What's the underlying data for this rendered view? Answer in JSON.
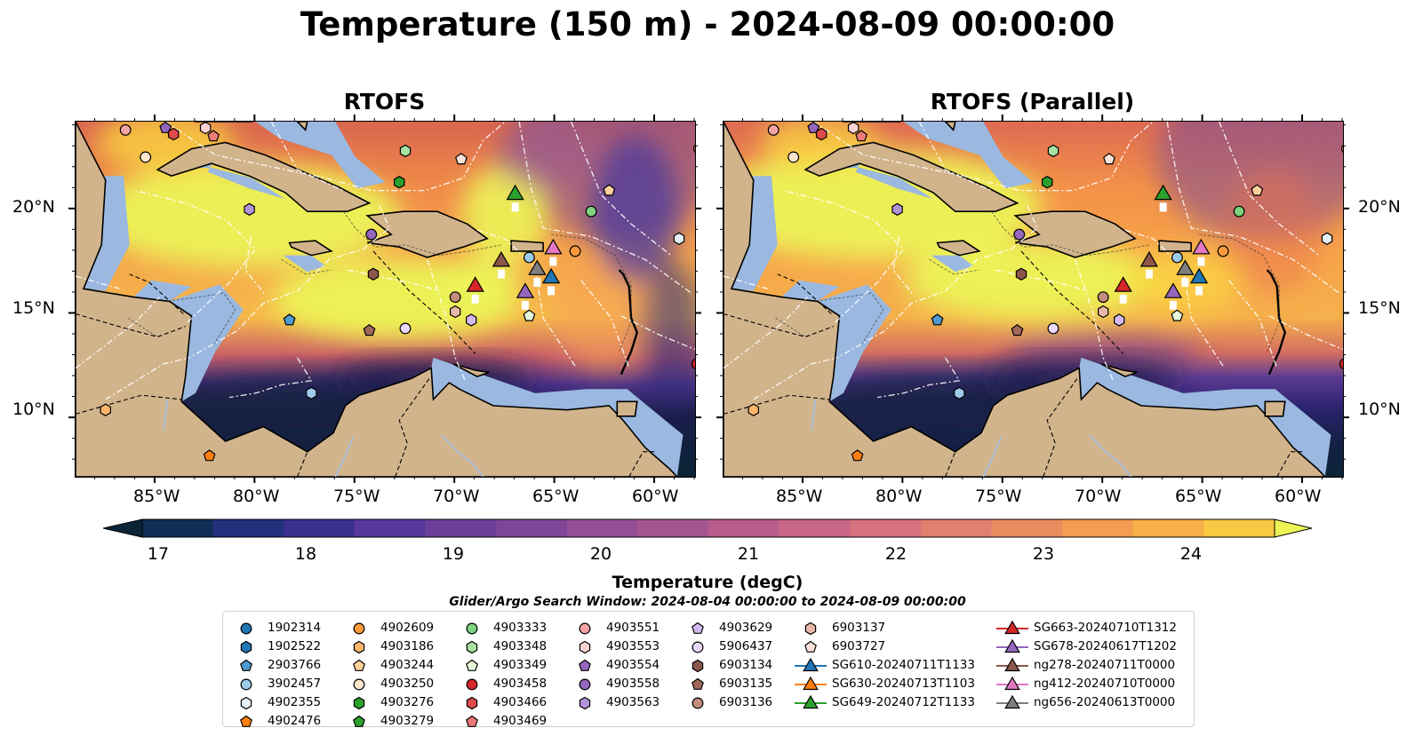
{
  "figure": {
    "title": "Temperature (150 m) - 2024-08-09 00:00:00",
    "panels": [
      {
        "title": "RTOFS"
      },
      {
        "title": "RTOFS (Parallel)"
      }
    ],
    "axes": {
      "lon_ticks": [
        "85°W",
        "80°W",
        "75°W",
        "70°W",
        "65°W",
        "60°W"
      ],
      "lat_ticks": [
        "20°N",
        "15°N",
        "10°N"
      ]
    },
    "colorbar": {
      "label": "Temperature (degC)",
      "ticks": [
        "17",
        "18",
        "19",
        "20",
        "21",
        "22",
        "23",
        "24"
      ],
      "min": 16.5,
      "max": 24.5,
      "extend": "both"
    },
    "search_window": "Glider/Argo Search Window: 2024-08-04 00:00:00 to 2024-08-09 00:00:00",
    "colors": {
      "land": "#d2b48c",
      "shelf": "#9ab8e0",
      "deep": "#0a2435",
      "warm": "#ecf457",
      "eez_line": "#ffffff",
      "border_line": "#000000"
    }
  },
  "legend": {
    "columns": [
      [
        {
          "label": "1902314",
          "shape": "circle",
          "color": "#1f77b4"
        },
        {
          "label": "1902522",
          "shape": "hexagon",
          "color": "#1f77b4"
        },
        {
          "label": "2903766",
          "shape": "pentagon",
          "color": "#4f9ad0"
        },
        {
          "label": "3902457",
          "shape": "circle",
          "color": "#9ecae9"
        },
        {
          "label": "4902355",
          "shape": "hexagon",
          "color": "#e4f1fb"
        },
        {
          "label": "4902476",
          "shape": "pentagon",
          "color": "#ff7f0e"
        }
      ],
      [
        {
          "label": "4902609",
          "shape": "circle",
          "color": "#ff9a3c"
        },
        {
          "label": "4903186",
          "shape": "hexagon",
          "color": "#ffb46b"
        },
        {
          "label": "4903244",
          "shape": "pentagon",
          "color": "#ffd09c"
        },
        {
          "label": "4903250",
          "shape": "circle",
          "color": "#ffe7cc"
        },
        {
          "label": "4903276",
          "shape": "hexagon",
          "color": "#2ca02c"
        },
        {
          "label": "4903279",
          "shape": "pentagon",
          "color": "#2ca02c"
        }
      ],
      [
        {
          "label": "4903333",
          "shape": "circle",
          "color": "#7ed47e"
        },
        {
          "label": "4903348",
          "shape": "hexagon",
          "color": "#a6e3a0"
        },
        {
          "label": "4903349",
          "shape": "pentagon",
          "color": "#e6fadc"
        },
        {
          "label": "4903458",
          "shape": "circle",
          "color": "#d62728"
        },
        {
          "label": "4903466",
          "shape": "hexagon",
          "color": "#e04a4a"
        },
        {
          "label": "4903469",
          "shape": "pentagon",
          "color": "#ec7a76"
        }
      ],
      [
        {
          "label": "4903551",
          "shape": "circle",
          "color": "#f4a3a3"
        },
        {
          "label": "4903553",
          "shape": "hexagon",
          "color": "#fbd4d2"
        },
        {
          "label": "4903554",
          "shape": "pentagon",
          "color": "#9467bd"
        },
        {
          "label": "4903558",
          "shape": "circle",
          "color": "#9467bd"
        },
        {
          "label": "4903563",
          "shape": "hexagon",
          "color": "#b294d8"
        }
      ],
      [
        {
          "label": "4903629",
          "shape": "pentagon",
          "color": "#d2b9ee"
        },
        {
          "label": "5906437",
          "shape": "circle",
          "color": "#ead9fa"
        },
        {
          "label": "6903134",
          "shape": "hexagon",
          "color": "#8c564b"
        },
        {
          "label": "6903135",
          "shape": "pentagon",
          "color": "#a0685a"
        },
        {
          "label": "6903136",
          "shape": "circle",
          "color": "#c48c7c"
        }
      ],
      [
        {
          "label": "6903137",
          "shape": "hexagon",
          "color": "#e8b8a8"
        },
        {
          "label": "6903727",
          "shape": "pentagon",
          "color": "#fbe2d8"
        },
        {
          "label": "SG610-20240711T1133",
          "shape": "triangle",
          "color": "#1f77b4"
        },
        {
          "label": "SG630-20240713T1103",
          "shape": "triangle",
          "color": "#ff7f0e"
        },
        {
          "label": "SG649-20240712T1133",
          "shape": "triangle",
          "color": "#2ca02c"
        }
      ],
      [
        {
          "label": "SG663-20240710T1312",
          "shape": "triangle",
          "color": "#d62728"
        },
        {
          "label": "SG678-20240617T1202",
          "shape": "triangle",
          "color": "#9467bd"
        },
        {
          "label": "ng278-20240711T0000",
          "shape": "triangle",
          "color": "#8c564b"
        },
        {
          "label": "ng412-20240710T0000",
          "shape": "triangle",
          "color": "#e377c2"
        },
        {
          "label": "ng656-20240613T0000",
          "shape": "triangle",
          "color": "#7f7f7f"
        }
      ]
    ]
  },
  "markers": [
    {
      "lon": -86.5,
      "lat": 23.8,
      "shape": "circle",
      "color": "#f4a3a3"
    },
    {
      "lon": -84.5,
      "lat": 23.9,
      "shape": "pentagon",
      "color": "#9467bd"
    },
    {
      "lon": -84.1,
      "lat": 23.6,
      "shape": "hexagon",
      "color": "#e04a4a"
    },
    {
      "lon": -82.5,
      "lat": 23.9,
      "shape": "hexagon",
      "color": "#fbd4d2"
    },
    {
      "lon": -82.1,
      "lat": 23.5,
      "shape": "pentagon",
      "color": "#ec7a76"
    },
    {
      "lon": -85.5,
      "lat": 22.5,
      "shape": "circle",
      "color": "#ffe7cc"
    },
    {
      "lon": -72.5,
      "lat": 22.8,
      "shape": "hexagon",
      "color": "#a6e3a0"
    },
    {
      "lon": -72.8,
      "lat": 21.3,
      "shape": "hexagon",
      "color": "#2ca02c"
    },
    {
      "lon": -69.7,
      "lat": 22.4,
      "shape": "pentagon",
      "color": "#fbe2d8"
    },
    {
      "lon": -62.3,
      "lat": 20.9,
      "shape": "pentagon",
      "color": "#ffd09c"
    },
    {
      "lon": -80.3,
      "lat": 20.0,
      "shape": "hexagon",
      "color": "#b294d8"
    },
    {
      "lon": -63.2,
      "lat": 19.9,
      "shape": "circle",
      "color": "#7ed47e"
    },
    {
      "lon": -74.2,
      "lat": 18.8,
      "shape": "circle",
      "color": "#9467bd"
    },
    {
      "lon": -58.8,
      "lat": 18.6,
      "shape": "hexagon",
      "color": "#e4f1fb"
    },
    {
      "lon": -66.3,
      "lat": 17.7,
      "shape": "circle",
      "color": "#9ecae9"
    },
    {
      "lon": -64.0,
      "lat": 18.0,
      "shape": "circle",
      "color": "#ff9a3c"
    },
    {
      "lon": -74.1,
      "lat": 16.9,
      "shape": "hexagon",
      "color": "#8c564b"
    },
    {
      "lon": -70.0,
      "lat": 15.8,
      "shape": "circle",
      "color": "#c48c7c"
    },
    {
      "lon": -70.0,
      "lat": 15.1,
      "shape": "hexagon",
      "color": "#e8b8a8"
    },
    {
      "lon": -69.2,
      "lat": 14.7,
      "shape": "hexagon",
      "color": "#d2b9ee"
    },
    {
      "lon": -66.3,
      "lat": 14.9,
      "shape": "pentagon",
      "color": "#e6fadc"
    },
    {
      "lon": -78.3,
      "lat": 14.7,
      "shape": "pentagon",
      "color": "#4f9ad0"
    },
    {
      "lon": -74.3,
      "lat": 14.2,
      "shape": "pentagon",
      "color": "#a0685a"
    },
    {
      "lon": -72.5,
      "lat": 14.3,
      "shape": "circle",
      "color": "#ead9fa"
    },
    {
      "lon": -77.2,
      "lat": 11.2,
      "shape": "hexagon",
      "color": "#9ecae9"
    },
    {
      "lon": -87.5,
      "lat": 10.4,
      "shape": "hexagon",
      "color": "#ffb46b"
    },
    {
      "lon": -82.3,
      "lat": 8.2,
      "shape": "pentagon",
      "color": "#ff7f0e"
    },
    {
      "lon": -57.9,
      "lat": 12.6,
      "shape": "circle",
      "color": "#d62728"
    },
    {
      "lon": -57.8,
      "lat": 22.9,
      "shape": "circle",
      "color": "#ff9a3c"
    }
  ],
  "gliders": [
    {
      "lon": -67.0,
      "lat": 20.7,
      "color": "#2ca02c"
    },
    {
      "lon": -67.7,
      "lat": 17.5,
      "color": "#8c564b"
    },
    {
      "lon": -65.1,
      "lat": 18.1,
      "color": "#e377c2"
    },
    {
      "lon": -69.0,
      "lat": 16.3,
      "color": "#d62728"
    },
    {
      "lon": -66.5,
      "lat": 16.0,
      "color": "#9467bd"
    },
    {
      "lon": -65.9,
      "lat": 17.1,
      "color": "#7f7f7f"
    },
    {
      "lon": -65.2,
      "lat": 16.7,
      "color": "#1f77b4"
    }
  ]
}
